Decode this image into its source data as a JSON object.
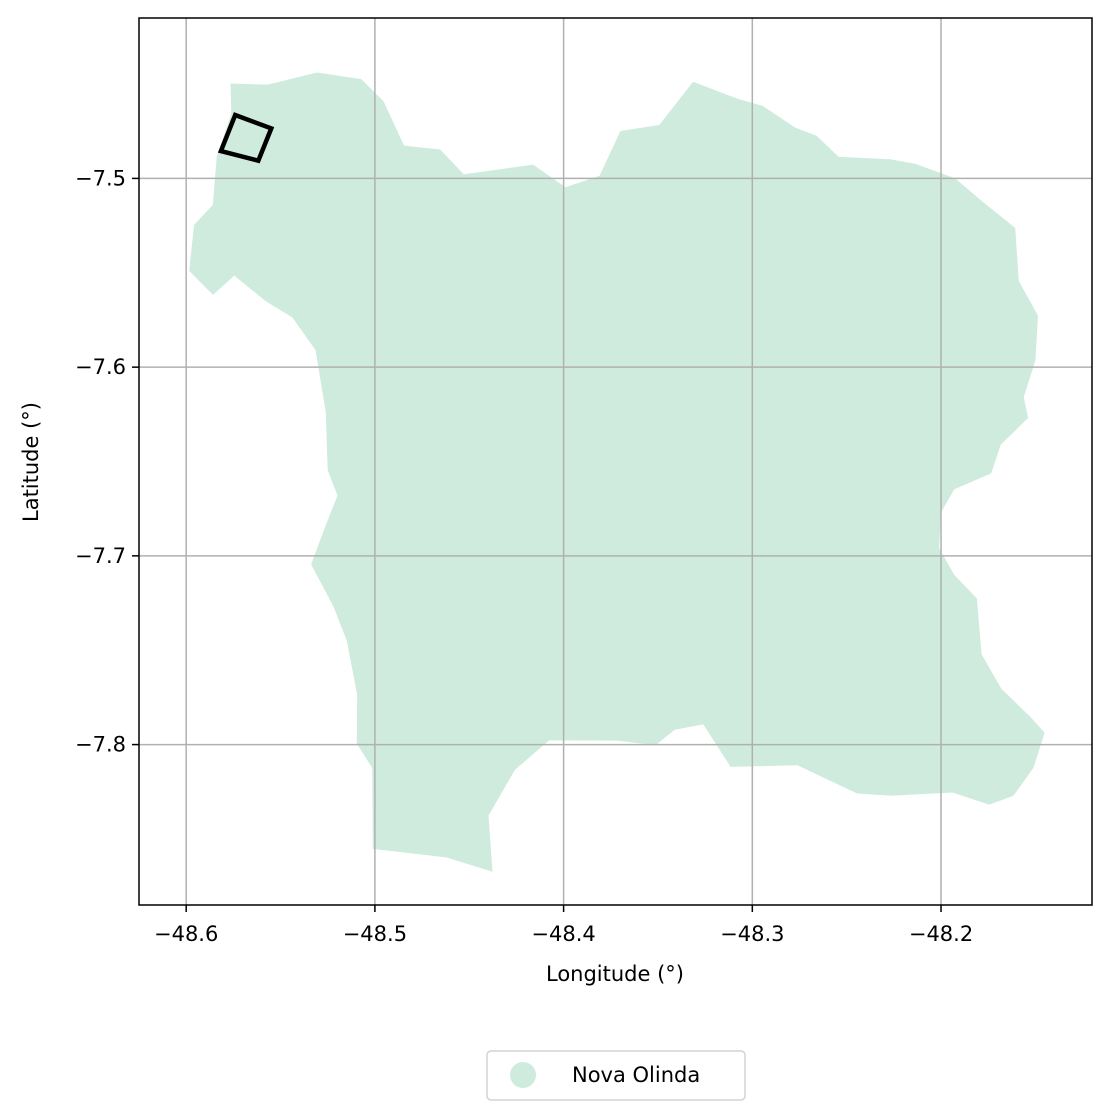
{
  "chart_data": {
    "type": "map",
    "xlabel": "Longitude (°)",
    "ylabel": "Latitude (°)",
    "xlim": [
      -48.625,
      -48.12
    ],
    "ylim": [
      -7.885,
      -7.415
    ],
    "x_ticks": [
      -48.6,
      -48.5,
      -48.4,
      -48.3,
      -48.2
    ],
    "y_ticks": [
      -7.5,
      -7.6,
      -7.7,
      -7.8
    ],
    "x_tick_labels": [
      "−48.6",
      "−48.5",
      "−48.4",
      "−48.3",
      "−48.2"
    ],
    "y_tick_labels": [
      "−7.5",
      "−7.6",
      "−7.7",
      "−7.8"
    ],
    "grid": true,
    "legend_position": "bottom-center",
    "regions": [
      {
        "name": "Nova Olinda",
        "color": "#cfebde",
        "boundary": [
          [
            -48.5765,
            -7.4497
          ],
          [
            -48.5567,
            -7.4503
          ],
          [
            -48.5306,
            -7.4439
          ],
          [
            -48.5072,
            -7.4474
          ],
          [
            -48.4954,
            -7.4592
          ],
          [
            -48.4846,
            -7.4826
          ],
          [
            -48.4654,
            -7.4847
          ],
          [
            -48.4529,
            -7.4978
          ],
          [
            -48.4354,
            -7.4954
          ],
          [
            -48.4162,
            -7.4927
          ],
          [
            -48.399,
            -7.5047
          ],
          [
            -48.3809,
            -7.4986
          ],
          [
            -48.3699,
            -7.4749
          ],
          [
            -48.3493,
            -7.4717
          ],
          [
            -48.3314,
            -7.4488
          ],
          [
            -48.308,
            -7.4577
          ],
          [
            -48.2945,
            -7.4616
          ],
          [
            -48.2774,
            -7.473
          ],
          [
            -48.266,
            -7.4774
          ],
          [
            -48.2542,
            -7.4886
          ],
          [
            -48.227,
            -7.4898
          ],
          [
            -48.2136,
            -7.4923
          ],
          [
            -48.1925,
            -7.5
          ],
          [
            -48.178,
            -7.5123
          ],
          [
            -48.1607,
            -7.5262
          ],
          [
            -48.1588,
            -7.5544
          ],
          [
            -48.1486,
            -7.5727
          ],
          [
            -48.15,
            -7.5965
          ],
          [
            -48.1562,
            -7.616
          ],
          [
            -48.1538,
            -7.6269
          ],
          [
            -48.1684,
            -7.6411
          ],
          [
            -48.1734,
            -7.6563
          ],
          [
            -48.193,
            -7.6648
          ],
          [
            -48.2,
            -7.677
          ],
          [
            -48.201,
            -7.6959
          ],
          [
            -48.193,
            -7.71
          ],
          [
            -48.181,
            -7.7226
          ],
          [
            -48.1785,
            -7.7521
          ],
          [
            -48.1681,
            -7.7703
          ],
          [
            -48.1522,
            -7.7858
          ],
          [
            -48.1451,
            -7.7937
          ],
          [
            -48.151,
            -7.8123
          ],
          [
            -48.1617,
            -7.8272
          ],
          [
            -48.1744,
            -7.8318
          ],
          [
            -48.194,
            -7.8254
          ],
          [
            -48.2264,
            -7.8271
          ],
          [
            -48.2445,
            -7.8259
          ],
          [
            -48.2761,
            -7.8109
          ],
          [
            -48.3115,
            -7.8118
          ],
          [
            -48.326,
            -7.7893
          ],
          [
            -48.3411,
            -7.7921
          ],
          [
            -48.3513,
            -7.8003
          ],
          [
            -48.3715,
            -7.7979
          ],
          [
            -48.4077,
            -7.7978
          ],
          [
            -48.4258,
            -7.8134
          ],
          [
            -48.4398,
            -7.8376
          ],
          [
            -48.4377,
            -7.8674
          ],
          [
            -48.4622,
            -7.8598
          ],
          [
            -48.5011,
            -7.8553
          ],
          [
            -48.5014,
            -7.8124
          ],
          [
            -48.5096,
            -7.7995
          ],
          [
            -48.5094,
            -7.7736
          ],
          [
            -48.5149,
            -7.745
          ],
          [
            -48.522,
            -7.7268
          ],
          [
            -48.5338,
            -7.7045
          ],
          [
            -48.5257,
            -7.6829
          ],
          [
            -48.5198,
            -7.668
          ],
          [
            -48.525,
            -7.6547
          ],
          [
            -48.526,
            -7.6241
          ],
          [
            -48.5314,
            -7.591
          ],
          [
            -48.5437,
            -7.5737
          ],
          [
            -48.5578,
            -7.5651
          ],
          [
            -48.5745,
            -7.5515
          ],
          [
            -48.5858,
            -7.5617
          ],
          [
            -48.5984,
            -7.549
          ],
          [
            -48.5958,
            -7.5245
          ],
          [
            -48.5859,
            -7.5141
          ],
          [
            -48.5838,
            -7.4887
          ],
          [
            -48.5761,
            -7.4658
          ]
        ]
      }
    ],
    "highlight_box": {
      "color": "#000000",
      "corners": [
        [
          -48.574,
          -7.4664
        ],
        [
          -48.5549,
          -7.4735
        ],
        [
          -48.5618,
          -7.4906
        ],
        [
          -48.5816,
          -7.4855
        ]
      ]
    },
    "legend": [
      {
        "label": "Nova Olinda",
        "color": "#cfebde"
      }
    ]
  }
}
